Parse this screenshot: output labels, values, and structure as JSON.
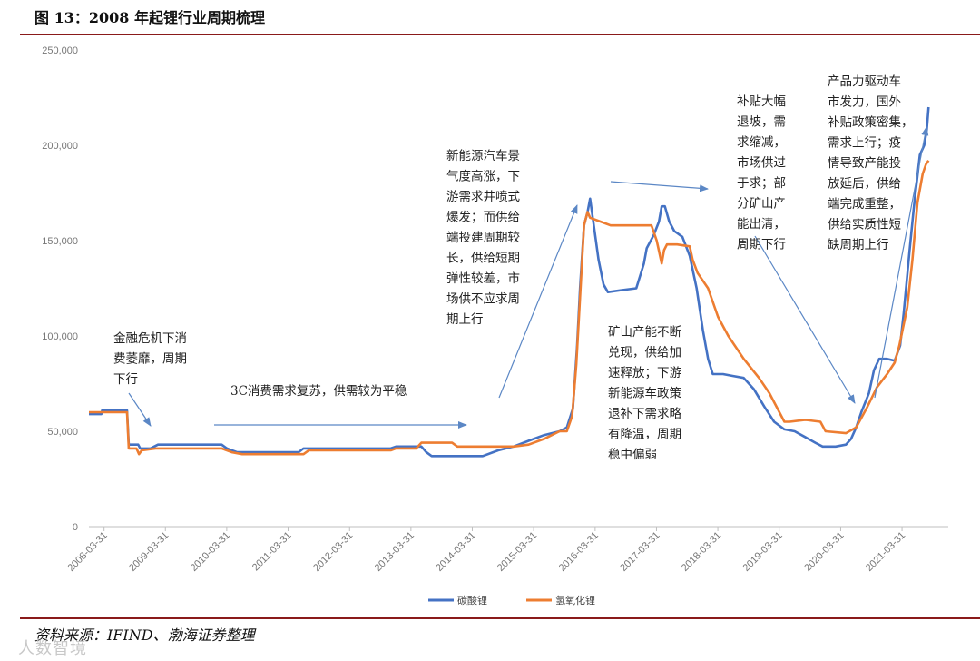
{
  "header": {
    "title": "图 13：2008 年起锂行业周期梳理"
  },
  "footer": {
    "source": "资料来源：IFIND、渤海证券整理",
    "watermark": "人数智境"
  },
  "chart_data": {
    "type": "line",
    "ylim": [
      0,
      250000
    ],
    "yticks": [
      0,
      50000,
      100000,
      150000,
      200000,
      250000
    ],
    "ytick_labels": [
      "0",
      "50,000",
      "100,000",
      "150,000",
      "200,000",
      "250,000"
    ],
    "xlim": [
      "2008-01-01",
      "2021-12-31"
    ],
    "xticks": [
      "2008-03-31",
      "2009-03-31",
      "2010-03-31",
      "2011-03-31",
      "2012-03-31",
      "2013-03-31",
      "2014-03-31",
      "2015-03-31",
      "2016-03-31",
      "2017-03-31",
      "2018-03-31",
      "2019-03-31",
      "2020-03-31",
      "2021-03-31"
    ],
    "xtick_labels": [
      "2008-03-31",
      "2009-03-31",
      "2010-03-31",
      "2011-03-31",
      "2012-03-31",
      "2013-03-31",
      "2014-03-31",
      "2015-03-31",
      "2016-03-31",
      "2017-03-31",
      "2018-03-31",
      "2019-03-31",
      "2020-03-31",
      "2021-03-31"
    ],
    "legend_position": "bottom-center",
    "series": [
      {
        "name": "碳酸锂",
        "color": "#4472C4",
        "points": [
          [
            "2008-01-01",
            59000
          ],
          [
            "2008-03-15",
            59000
          ],
          [
            "2008-03-20",
            61000
          ],
          [
            "2008-08-15",
            61000
          ],
          [
            "2008-08-25",
            43000
          ],
          [
            "2008-10-20",
            43000
          ],
          [
            "2008-11-01",
            41000
          ],
          [
            "2009-01-01",
            41000
          ],
          [
            "2009-02-15",
            43000
          ],
          [
            "2010-01-01",
            43000
          ],
          [
            "2010-03-01",
            43000
          ],
          [
            "2010-04-01",
            41000
          ],
          [
            "2010-06-01",
            39000
          ],
          [
            "2011-06-01",
            39000
          ],
          [
            "2011-07-01",
            41000
          ],
          [
            "2012-12-01",
            41000
          ],
          [
            "2013-01-01",
            42000
          ],
          [
            "2013-06-01",
            42000
          ],
          [
            "2013-07-01",
            39000
          ],
          [
            "2013-08-01",
            37000
          ],
          [
            "2014-06-01",
            37000
          ],
          [
            "2014-09-01",
            40000
          ],
          [
            "2014-12-01",
            42000
          ],
          [
            "2015-03-01",
            45000
          ],
          [
            "2015-06-01",
            48000
          ],
          [
            "2015-09-01",
            50000
          ],
          [
            "2015-10-15",
            52000
          ],
          [
            "2015-11-20",
            62000
          ],
          [
            "2015-12-15",
            95000
          ],
          [
            "2016-01-01",
            125000
          ],
          [
            "2016-01-25",
            158000
          ],
          [
            "2016-02-15",
            165000
          ],
          [
            "2016-03-01",
            172000
          ],
          [
            "2016-03-20",
            160000
          ],
          [
            "2016-04-20",
            140000
          ],
          [
            "2016-05-20",
            127000
          ],
          [
            "2016-06-15",
            123000
          ],
          [
            "2016-09-01",
            124000
          ],
          [
            "2016-12-01",
            125000
          ],
          [
            "2017-01-15",
            138000
          ],
          [
            "2017-02-01",
            146000
          ],
          [
            "2017-03-15",
            153000
          ],
          [
            "2017-04-15",
            160000
          ],
          [
            "2017-05-01",
            168000
          ],
          [
            "2017-05-20",
            168000
          ],
          [
            "2017-06-15",
            160000
          ],
          [
            "2017-07-15",
            155000
          ],
          [
            "2017-09-01",
            152000
          ],
          [
            "2017-10-15",
            142000
          ],
          [
            "2017-11-25",
            125000
          ],
          [
            "2018-01-01",
            103000
          ],
          [
            "2018-02-01",
            88000
          ],
          [
            "2018-03-01",
            80000
          ],
          [
            "2018-05-01",
            80000
          ],
          [
            "2018-07-01",
            79000
          ],
          [
            "2018-09-01",
            78000
          ],
          [
            "2018-11-01",
            72000
          ],
          [
            "2019-01-01",
            63000
          ],
          [
            "2019-03-01",
            55000
          ],
          [
            "2019-05-01",
            51000
          ],
          [
            "2019-07-01",
            50000
          ],
          [
            "2019-09-01",
            47000
          ],
          [
            "2019-11-01",
            44000
          ],
          [
            "2019-12-15",
            42000
          ],
          [
            "2020-03-01",
            42000
          ],
          [
            "2020-05-01",
            43000
          ],
          [
            "2020-06-01",
            46000
          ],
          [
            "2020-07-01",
            52000
          ],
          [
            "2020-08-01",
            60000
          ],
          [
            "2020-09-15",
            70000
          ],
          [
            "2020-10-15",
            82000
          ],
          [
            "2020-11-15",
            88000
          ],
          [
            "2021-01-01",
            88000
          ],
          [
            "2021-02-15",
            87000
          ],
          [
            "2021-03-20",
            95000
          ],
          [
            "2021-04-10",
            112000
          ],
          [
            "2021-05-15",
            145000
          ],
          [
            "2021-06-10",
            168000
          ],
          [
            "2021-07-15",
            195000
          ],
          [
            "2021-08-10",
            200000
          ],
          [
            "2021-08-25",
            208000
          ],
          [
            "2021-09-05",
            220000
          ]
        ]
      },
      {
        "name": "氢氧化锂",
        "color": "#ED7D31",
        "points": [
          [
            "2008-01-01",
            60000
          ],
          [
            "2008-08-15",
            60000
          ],
          [
            "2008-08-25",
            41000
          ],
          [
            "2008-10-10",
            41000
          ],
          [
            "2008-10-25",
            38000
          ],
          [
            "2008-11-10",
            40000
          ],
          [
            "2009-02-01",
            41000
          ],
          [
            "2010-03-01",
            41000
          ],
          [
            "2010-05-01",
            39000
          ],
          [
            "2010-07-01",
            38000
          ],
          [
            "2011-07-01",
            38000
          ],
          [
            "2011-08-01",
            40000
          ],
          [
            "2012-12-01",
            40000
          ],
          [
            "2013-01-01",
            41000
          ],
          [
            "2013-05-01",
            41000
          ],
          [
            "2013-06-01",
            44000
          ],
          [
            "2013-12-01",
            44000
          ],
          [
            "2014-01-01",
            42000
          ],
          [
            "2014-12-01",
            42000
          ],
          [
            "2015-03-01",
            43000
          ],
          [
            "2015-06-01",
            46000
          ],
          [
            "2015-09-01",
            50000
          ],
          [
            "2015-10-15",
            50000
          ],
          [
            "2015-11-15",
            58000
          ],
          [
            "2015-12-10",
            85000
          ],
          [
            "2016-01-01",
            120000
          ],
          [
            "2016-01-25",
            158000
          ],
          [
            "2016-02-15",
            165000
          ],
          [
            "2016-03-01",
            162000
          ],
          [
            "2016-05-01",
            160000
          ],
          [
            "2016-07-01",
            158000
          ],
          [
            "2016-12-01",
            158000
          ],
          [
            "2017-03-01",
            158000
          ],
          [
            "2017-04-01",
            150000
          ],
          [
            "2017-05-01",
            138000
          ],
          [
            "2017-05-15",
            145000
          ],
          [
            "2017-06-01",
            148000
          ],
          [
            "2017-08-01",
            148000
          ],
          [
            "2017-10-15",
            147000
          ],
          [
            "2017-11-01",
            140000
          ],
          [
            "2017-12-01",
            133000
          ],
          [
            "2018-02-01",
            125000
          ],
          [
            "2018-04-01",
            110000
          ],
          [
            "2018-06-01",
            100000
          ],
          [
            "2018-09-01",
            88000
          ],
          [
            "2018-12-01",
            78000
          ],
          [
            "2019-02-01",
            70000
          ],
          [
            "2019-04-01",
            60000
          ],
          [
            "2019-05-01",
            55000
          ],
          [
            "2019-06-01",
            55000
          ],
          [
            "2019-09-01",
            56000
          ],
          [
            "2019-12-01",
            55000
          ],
          [
            "2020-01-01",
            50000
          ],
          [
            "2020-05-01",
            49000
          ],
          [
            "2020-07-01",
            52000
          ],
          [
            "2020-09-01",
            62000
          ],
          [
            "2020-11-01",
            73000
          ],
          [
            "2021-01-01",
            80000
          ],
          [
            "2021-02-15",
            86000
          ],
          [
            "2021-03-15",
            95000
          ],
          [
            "2021-05-01",
            115000
          ],
          [
            "2021-06-01",
            140000
          ],
          [
            "2021-07-01",
            170000
          ],
          [
            "2021-08-01",
            185000
          ],
          [
            "2021-08-20",
            190000
          ],
          [
            "2021-09-05",
            192000
          ]
        ]
      }
    ],
    "annotations": [
      {
        "id": "a1",
        "lines": [
          "金融危机下消",
          "费萎靡，周期",
          "下行"
        ]
      },
      {
        "id": "a2",
        "lines": [
          "3C消费需求复苏，供需较为平稳"
        ]
      },
      {
        "id": "a3",
        "lines": [
          "新能源汽车景",
          "气度高涨，下",
          "游需求井喷式",
          "爆发；而供给",
          "端投建周期较",
          "长，供给短期",
          "弹性较差，市",
          "场供不应求周",
          "期上行"
        ]
      },
      {
        "id": "a4",
        "lines": [
          "补贴大幅",
          "退坡，需",
          "求缩减，",
          "市场供过",
          "于求；部",
          "分矿山产",
          "能出清，",
          "周期下行"
        ]
      },
      {
        "id": "a5",
        "lines": [
          "矿山产能不断",
          "兑现，供给加",
          "速释放；下游",
          "新能源车政策",
          "退补下需求略",
          "有降温，周期",
          "稳中偏弱"
        ]
      },
      {
        "id": "a6",
        "lines": [
          "产品力驱动车",
          "市发力，国外",
          "补贴政策密集，",
          "需求上行；疫",
          "情导致产能投",
          "放延后，供给",
          "端完成重整，",
          "供给实质性短",
          "缺周期上行"
        ]
      }
    ]
  }
}
